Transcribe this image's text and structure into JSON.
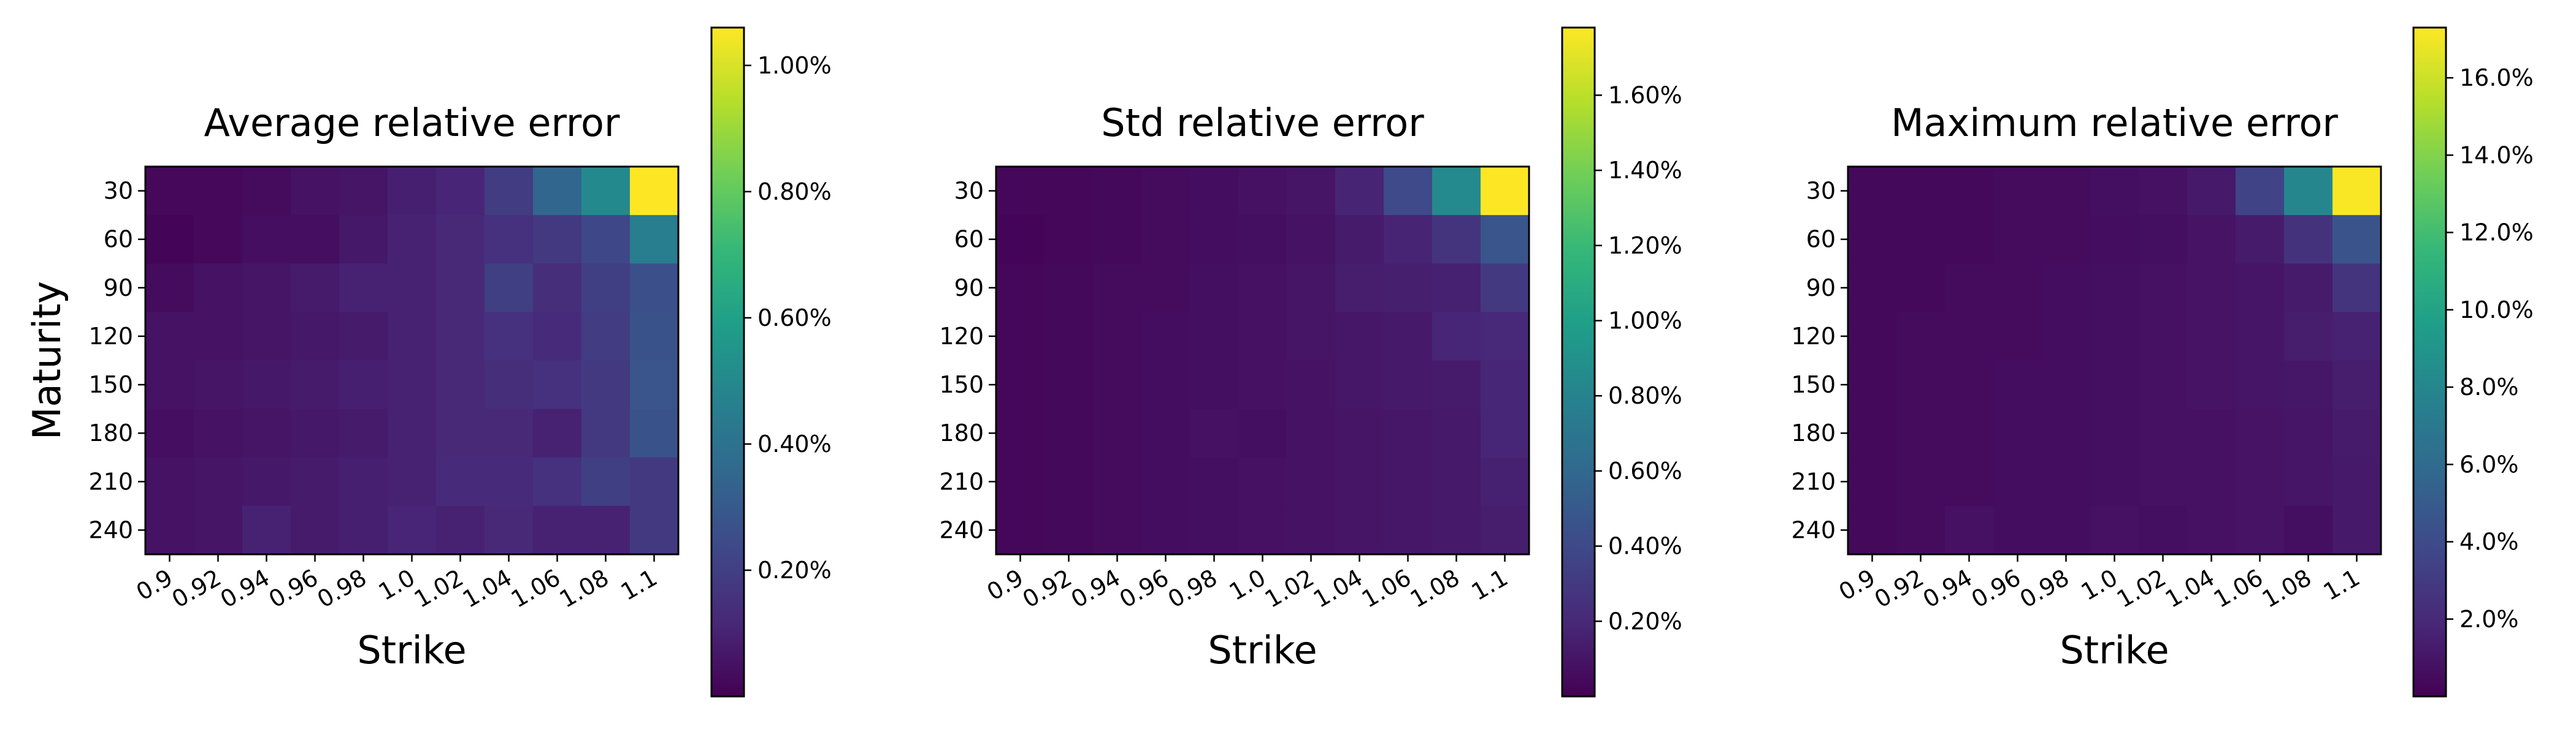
{
  "figure": {
    "colormap": "viridis",
    "viridis_stops": [
      "#440154",
      "#482878",
      "#3e4989",
      "#31688e",
      "#26828e",
      "#1f9e89",
      "#35b779",
      "#6ece58",
      "#b5de2b",
      "#fde725"
    ]
  },
  "chart_data": [
    {
      "type": "heatmap",
      "title": "Average relative error",
      "xlabel": "Strike",
      "ylabel": "Maturity",
      "x_categories": [
        "0.9",
        "0.92",
        "0.94",
        "0.96",
        "0.98",
        "1.0",
        "1.02",
        "1.04",
        "1.06",
        "1.08",
        "1.1"
      ],
      "y_categories": [
        "30",
        "60",
        "90",
        "120",
        "150",
        "180",
        "210",
        "240"
      ],
      "values": [
        [
          0.02,
          0.02,
          0.03,
          0.05,
          0.06,
          0.09,
          0.11,
          0.19,
          0.35,
          0.5,
          1.06
        ],
        [
          0.01,
          0.02,
          0.04,
          0.04,
          0.07,
          0.1,
          0.12,
          0.15,
          0.18,
          0.23,
          0.45
        ],
        [
          0.03,
          0.05,
          0.06,
          0.08,
          0.1,
          0.1,
          0.12,
          0.2,
          0.14,
          0.2,
          0.26
        ],
        [
          0.05,
          0.05,
          0.06,
          0.07,
          0.08,
          0.1,
          0.12,
          0.15,
          0.13,
          0.19,
          0.27
        ],
        [
          0.05,
          0.06,
          0.07,
          0.08,
          0.09,
          0.1,
          0.12,
          0.14,
          0.15,
          0.18,
          0.28
        ],
        [
          0.04,
          0.05,
          0.06,
          0.07,
          0.08,
          0.1,
          0.12,
          0.12,
          0.1,
          0.18,
          0.27
        ],
        [
          0.05,
          0.06,
          0.07,
          0.08,
          0.09,
          0.1,
          0.13,
          0.13,
          0.15,
          0.2,
          0.18
        ],
        [
          0.05,
          0.06,
          0.1,
          0.08,
          0.09,
          0.11,
          0.1,
          0.12,
          0.1,
          0.1,
          0.18
        ]
      ],
      "colorbar": {
        "min": 0.0,
        "max": 1.06,
        "ticks": [
          0.2,
          0.4,
          0.6,
          0.8,
          1.0
        ],
        "tick_labels": [
          "0.20%",
          "0.40%",
          "0.60%",
          "0.80%",
          "1.00%"
        ]
      }
    },
    {
      "type": "heatmap",
      "title": "Std relative error",
      "xlabel": "Strike",
      "ylabel": "Maturity",
      "x_categories": [
        "0.9",
        "0.92",
        "0.94",
        "0.96",
        "0.98",
        "1.0",
        "1.02",
        "1.04",
        "1.06",
        "1.08",
        "1.1"
      ],
      "y_categories": [
        "30",
        "60",
        "90",
        "120",
        "150",
        "180",
        "210",
        "240"
      ],
      "values": [
        [
          0.03,
          0.03,
          0.04,
          0.05,
          0.06,
          0.08,
          0.1,
          0.18,
          0.4,
          0.85,
          1.78
        ],
        [
          0.02,
          0.03,
          0.04,
          0.05,
          0.06,
          0.07,
          0.09,
          0.13,
          0.18,
          0.27,
          0.47
        ],
        [
          0.03,
          0.04,
          0.05,
          0.05,
          0.07,
          0.08,
          0.1,
          0.14,
          0.15,
          0.16,
          0.3
        ],
        [
          0.03,
          0.04,
          0.05,
          0.06,
          0.07,
          0.08,
          0.1,
          0.11,
          0.12,
          0.19,
          0.2
        ],
        [
          0.03,
          0.04,
          0.05,
          0.06,
          0.07,
          0.08,
          0.09,
          0.11,
          0.12,
          0.13,
          0.19
        ],
        [
          0.03,
          0.04,
          0.05,
          0.06,
          0.08,
          0.07,
          0.09,
          0.1,
          0.11,
          0.12,
          0.19
        ],
        [
          0.03,
          0.04,
          0.05,
          0.06,
          0.07,
          0.08,
          0.09,
          0.1,
          0.11,
          0.12,
          0.16
        ],
        [
          0.03,
          0.04,
          0.05,
          0.06,
          0.07,
          0.08,
          0.09,
          0.1,
          0.11,
          0.12,
          0.14
        ]
      ],
      "colorbar": {
        "min": 0.0,
        "max": 1.78,
        "ticks": [
          0.2,
          0.4,
          0.6,
          0.8,
          1.0,
          1.2,
          1.4,
          1.6
        ],
        "tick_labels": [
          "0.20%",
          "0.40%",
          "0.60%",
          "0.80%",
          "1.00%",
          "1.20%",
          "1.40%",
          "1.60%"
        ]
      }
    },
    {
      "type": "heatmap",
      "title": "Maximum relative error",
      "xlabel": "Strike",
      "ylabel": "Maturity",
      "x_categories": [
        "0.9",
        "0.92",
        "0.94",
        "0.96",
        "0.98",
        "1.0",
        "1.02",
        "1.04",
        "1.06",
        "1.08",
        "1.1"
      ],
      "y_categories": [
        "30",
        "60",
        "90",
        "120",
        "150",
        "180",
        "210",
        "240"
      ],
      "values": [
        [
          0.4,
          0.4,
          0.4,
          0.5,
          0.5,
          0.7,
          0.8,
          1.2,
          3.5,
          8.0,
          17.2
        ],
        [
          0.4,
          0.4,
          0.4,
          0.5,
          0.5,
          0.6,
          0.7,
          0.9,
          1.3,
          2.5,
          4.5
        ],
        [
          0.4,
          0.4,
          0.5,
          0.5,
          0.6,
          0.7,
          0.8,
          0.9,
          1.0,
          1.3,
          2.6
        ],
        [
          0.4,
          0.5,
          0.5,
          0.5,
          0.6,
          0.7,
          0.8,
          0.9,
          1.0,
          1.4,
          1.6
        ],
        [
          0.4,
          0.5,
          0.5,
          0.6,
          0.6,
          0.7,
          0.8,
          0.9,
          1.0,
          1.1,
          1.4
        ],
        [
          0.4,
          0.5,
          0.5,
          0.6,
          0.6,
          0.7,
          0.8,
          0.8,
          0.9,
          1.0,
          1.3
        ],
        [
          0.4,
          0.5,
          0.5,
          0.6,
          0.6,
          0.7,
          0.8,
          0.8,
          0.9,
          1.0,
          1.2
        ],
        [
          0.4,
          0.5,
          0.8,
          0.6,
          0.6,
          0.8,
          0.7,
          0.8,
          0.9,
          0.7,
          1.2
        ]
      ],
      "colorbar": {
        "min": 0.0,
        "max": 17.3,
        "ticks": [
          2,
          4,
          6,
          8,
          10,
          12,
          14,
          16
        ],
        "tick_labels": [
          "2.0%",
          "4.0%",
          "6.0%",
          "8.0%",
          "10.0%",
          "12.0%",
          "14.0%",
          "16.0%"
        ]
      }
    }
  ]
}
